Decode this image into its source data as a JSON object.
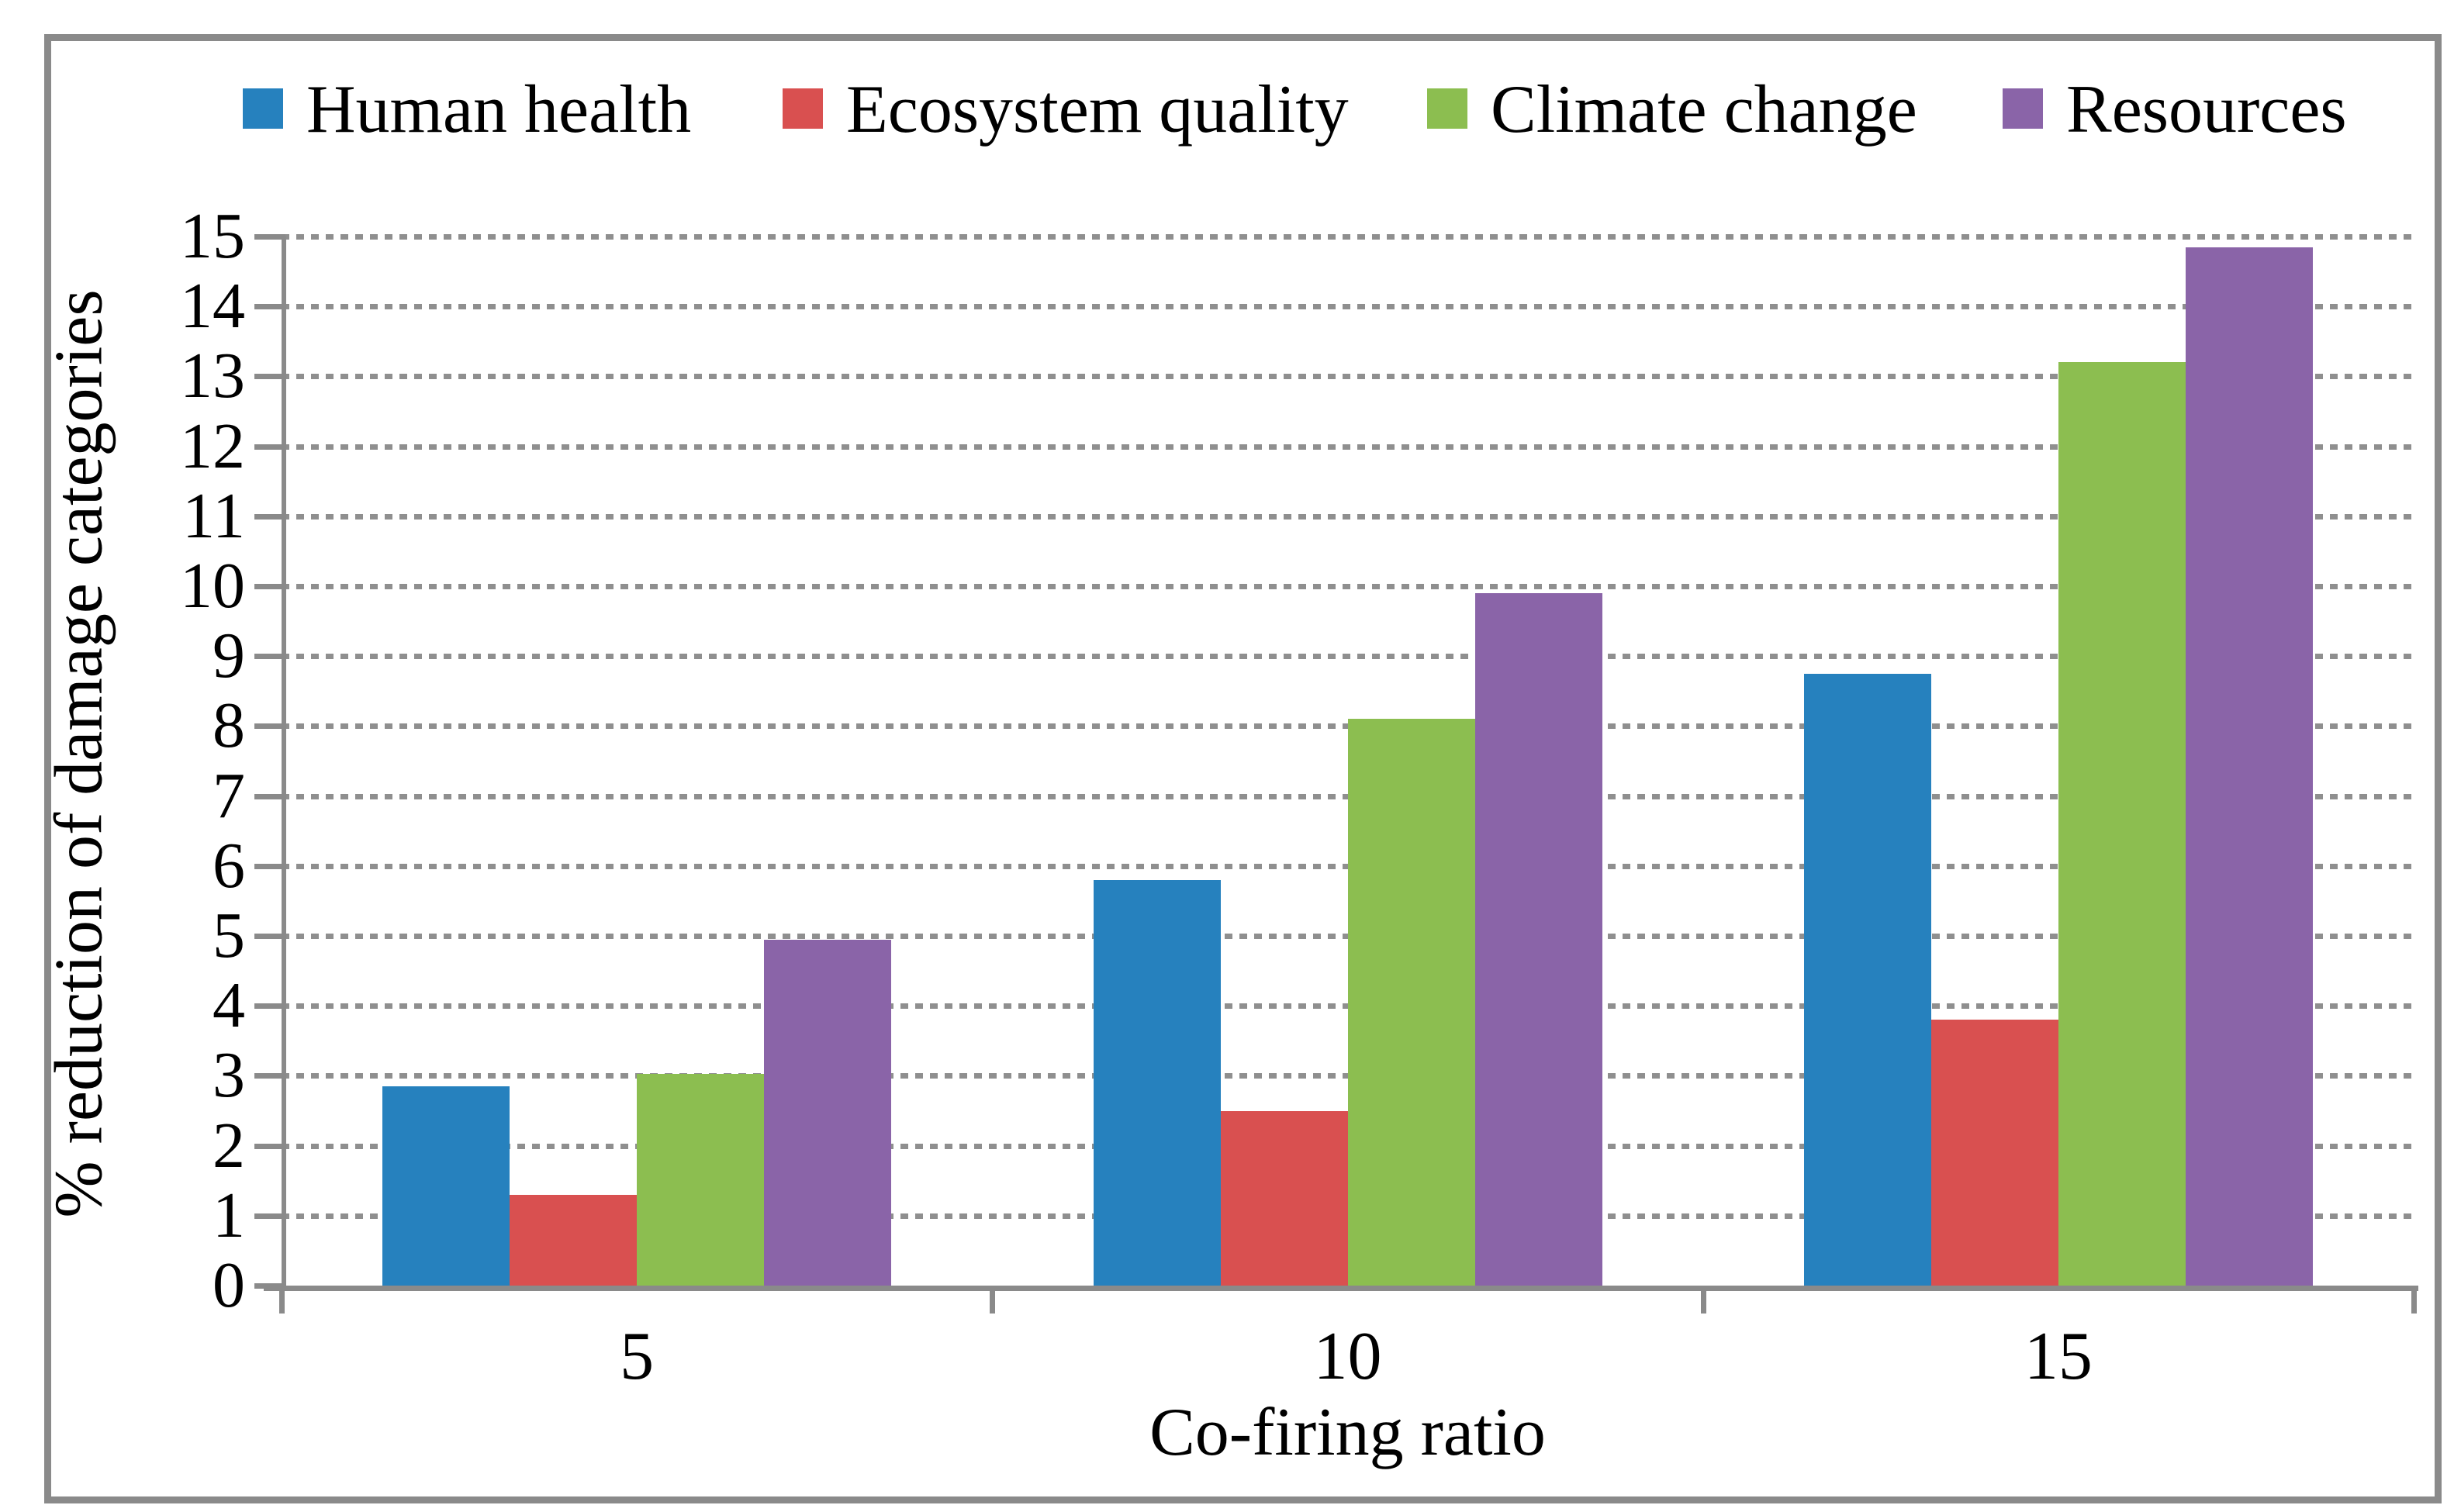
{
  "figure": {
    "background": "#FFFFFF",
    "border_color": "#8A8A8A",
    "axis_color": "#8A8A8A",
    "gridline_color": "#8F8F8F"
  },
  "legend": {
    "items": [
      {
        "label": "Human health",
        "color": "#2681BE"
      },
      {
        "label": "Ecosystem quality",
        "color": "#D95050"
      },
      {
        "label": "Climate change",
        "color": "#8CBE50"
      },
      {
        "label": "Resources",
        "color": "#8A64A8"
      }
    ]
  },
  "chart_data": {
    "type": "bar",
    "title": "",
    "xlabel": "Co-firing ratio",
    "ylabel": "% reduction of damage categories",
    "categories": [
      "5",
      "10",
      "15"
    ],
    "series": [
      {
        "name": "Human health",
        "color": "#2681BE",
        "values": [
          2.85,
          5.8,
          8.75
        ]
      },
      {
        "name": "Ecosystem quality",
        "color": "#D95050",
        "values": [
          1.3,
          2.5,
          3.8
        ]
      },
      {
        "name": "Climate change",
        "color": "#8CBE50",
        "values": [
          3.03,
          8.1,
          13.2
        ]
      },
      {
        "name": "Resources",
        "color": "#8A64A8",
        "values": [
          4.95,
          9.9,
          14.85
        ]
      }
    ],
    "ylim": [
      0,
      15
    ],
    "y_ticks": [
      0,
      1,
      2,
      3,
      4,
      5,
      6,
      7,
      8,
      9,
      10,
      11,
      12,
      13,
      14,
      15
    ],
    "grid": "horizontal-dotted",
    "legend_position": "top"
  }
}
